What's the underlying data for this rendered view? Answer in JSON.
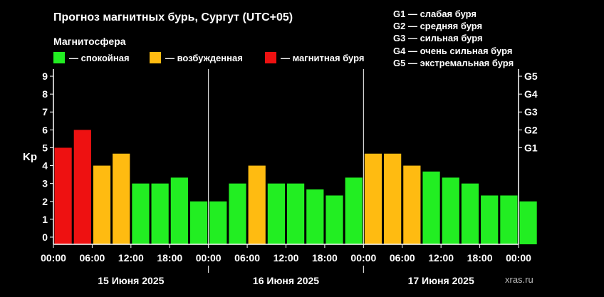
{
  "header": {
    "title": "Прогноз магнитных бурь, Сургут (UTC+05)",
    "subtitle": "Магнитосфера"
  },
  "legend": [
    {
      "label": "— спокойная",
      "color": "#22ee22"
    },
    {
      "label": "— возбужденная",
      "color": "#ffbb11"
    },
    {
      "label": "— магнитная буря",
      "color": "#ee1111"
    }
  ],
  "g_scale": [
    "G1 — слабая буря",
    "G2 — средняя буря",
    "G3 — сильная буря",
    "G4 — очень сильная буря",
    "G5 — экстремальная буря"
  ],
  "watermark": "xras.ru",
  "colors": {
    "quiet": "#22ee22",
    "active": "#ffbb11",
    "storm": "#ee1111",
    "axis": "#ffffff",
    "background": "#000000"
  },
  "chart_data": {
    "type": "bar",
    "ylabel": "Kp",
    "ylim": [
      -0.4,
      9.4
    ],
    "y_ticks": [
      "0",
      "1",
      "2",
      "3",
      "4",
      "5",
      "6",
      "7",
      "8",
      "9"
    ],
    "g_ticks": [
      {
        "label": "G1",
        "kp": 5
      },
      {
        "label": "G2",
        "kp": 6
      },
      {
        "label": "G3",
        "kp": 7
      },
      {
        "label": "G4",
        "kp": 8
      },
      {
        "label": "G5",
        "kp": 9
      }
    ],
    "x_tick_labels": [
      "00:00",
      "06:00",
      "12:00",
      "18:00",
      "00:00",
      "06:00",
      "12:00",
      "18:00",
      "00:00",
      "06:00",
      "12:00",
      "18:00",
      "00:00"
    ],
    "days": [
      "15 Июня 2025",
      "16 Июня 2025",
      "17 Июня 2025"
    ],
    "interval_hours": 3,
    "values": [
      5.0,
      6.0,
      4.0,
      4.67,
      3.0,
      3.0,
      3.33,
      2.0,
      2.0,
      3.0,
      4.0,
      3.0,
      3.0,
      2.67,
      2.33,
      3.33,
      4.67,
      4.67,
      4.0,
      3.67,
      3.33,
      3.0,
      2.33,
      2.33,
      2.0
    ],
    "levels": [
      "storm",
      "storm",
      "active",
      "active",
      "quiet",
      "quiet",
      "quiet",
      "quiet",
      "quiet",
      "quiet",
      "active",
      "quiet",
      "quiet",
      "quiet",
      "quiet",
      "quiet",
      "active",
      "active",
      "active",
      "quiet",
      "quiet",
      "quiet",
      "quiet",
      "quiet",
      "quiet"
    ]
  }
}
